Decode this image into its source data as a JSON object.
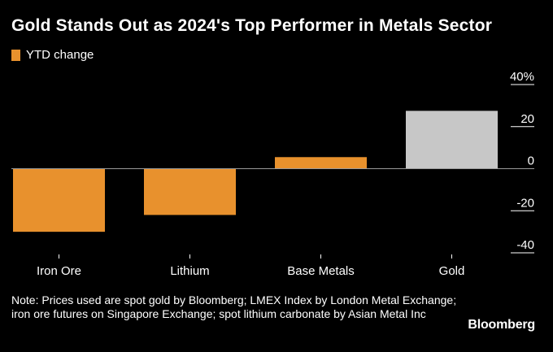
{
  "title": "Gold Stands Out as 2024's Top Performer in Metals Sector",
  "legend": {
    "label": "YTD change",
    "color": "#e8912d"
  },
  "note": "Note: Prices used are spot gold by Bloomberg; LMEX Index by London Metal Exchange; iron ore futures on Singapore Exchange; spot lithium carbonate by Asian Metal Inc",
  "brand": "Bloomberg",
  "colors": {
    "bar": "#e8912d",
    "highlight": "#c7c7c7",
    "zero_line": "#9a9a9a",
    "tick": "#ffffff"
  },
  "chart_data": {
    "type": "bar",
    "categories": [
      "Iron Ore",
      "Lithium",
      "Base Metals",
      "Gold"
    ],
    "series": [
      {
        "name": "YTD change",
        "values": [
          -30,
          -22,
          5.5,
          27.5
        ]
      }
    ],
    "highlight_category": "Gold",
    "ylim": [
      -40,
      40
    ],
    "yticks": [
      40,
      20,
      0,
      -20,
      -40
    ],
    "ytick_labels": [
      "40%",
      "20",
      "0",
      "-20",
      "-40"
    ],
    "yaxis_position": "right",
    "grid": false,
    "legend_position": "top-left"
  }
}
